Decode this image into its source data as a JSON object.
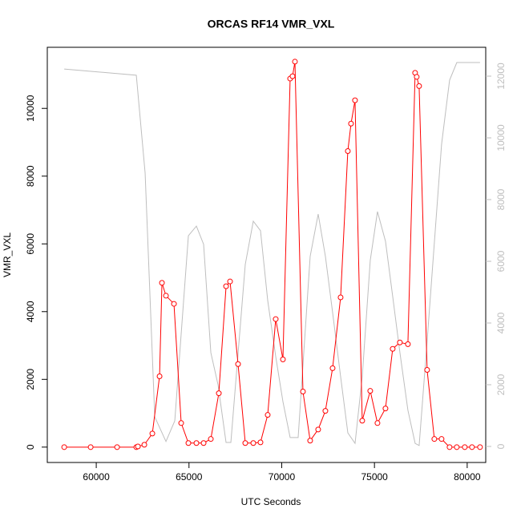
{
  "chart_data": {
    "type": "line",
    "title": "ORCAS RF14 VMR_VXL",
    "xlabel": "UTC Seconds",
    "ylabel": "VMR_VXL",
    "xlim": [
      57360,
      81000
    ],
    "ylim": [
      -454,
      11804
    ],
    "y2lim": [
      -520,
      12935
    ],
    "xticks": [
      60000,
      65000,
      70000,
      75000,
      80000
    ],
    "yticks": [
      0,
      2000,
      4000,
      6000,
      8000,
      10000
    ],
    "y2ticks": [
      0,
      2000,
      4000,
      6000,
      8000,
      10000,
      12000
    ],
    "series": [
      {
        "color": "#bebebe",
        "axis": "y2",
        "markers": false,
        "x": [
          58272,
          62160,
          62635,
          63154,
          63758,
          64234,
          64968,
          65400,
          65789,
          66178,
          66566,
          66998,
          67258,
          67646,
          68035,
          68467,
          68856,
          69245,
          69677,
          70066,
          70454,
          70886,
          71534,
          71966,
          72355,
          72744,
          73176,
          73565,
          73954,
          74342,
          74774,
          75163,
          75595,
          75984,
          76373,
          76805,
          77194,
          77410,
          77842,
          78619,
          79051,
          79440,
          80693
        ],
        "values": [
          12230,
          12030,
          8860,
          960,
          160,
          830,
          6830,
          7140,
          6550,
          3040,
          2000,
          130,
          130,
          3010,
          5900,
          7300,
          6990,
          4730,
          2910,
          1450,
          290,
          290,
          6160,
          7530,
          6160,
          4340,
          2260,
          440,
          100,
          2260,
          6030,
          7610,
          6650,
          4860,
          3040,
          1170,
          100,
          30,
          3430,
          9790,
          11870,
          12440,
          12440
        ]
      },
      {
        "color": "#ff0000",
        "axis": "y",
        "markers": true,
        "x": [
          58272,
          59698,
          61123,
          62160,
          62246,
          62592,
          63024,
          63413,
          63542,
          63758,
          64190,
          64579,
          64968,
          65400,
          65788,
          66177,
          66609,
          67000,
          67214,
          67646,
          68035,
          68467,
          68855,
          69244,
          69676,
          70065,
          70454,
          70583,
          70713,
          71145,
          71533,
          71965,
          72354,
          72743,
          73175,
          73564,
          73737,
          73952,
          74341,
          74773,
          75162,
          75594,
          75983,
          76371,
          76803,
          77192,
          77279,
          77408,
          77840,
          78229,
          78618,
          79050,
          79438,
          79870,
          80259,
          80691
        ],
        "values": [
          0,
          0,
          0,
          0,
          20,
          70,
          400,
          2090,
          4850,
          4470,
          4230,
          710,
          120,
          120,
          120,
          240,
          1590,
          4750,
          4890,
          2450,
          120,
          120,
          140,
          950,
          3780,
          2590,
          10880,
          10950,
          11380,
          1640,
          190,
          520,
          1070,
          2330,
          4420,
          8740,
          9550,
          10240,
          780,
          1660,
          710,
          1140,
          2900,
          3090,
          3040,
          11050,
          10930,
          10660,
          2280,
          240,
          240,
          0,
          0,
          0,
          0,
          0
        ]
      }
    ]
  }
}
